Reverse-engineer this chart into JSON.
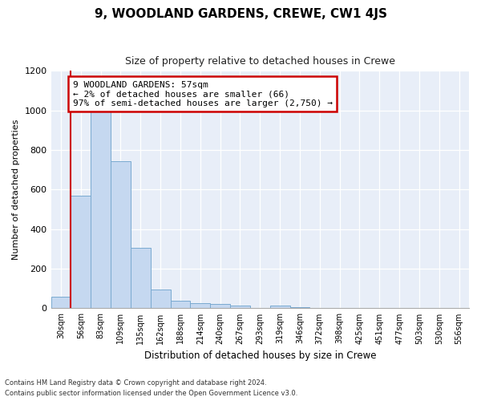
{
  "title": "9, WOODLAND GARDENS, CREWE, CW1 4JS",
  "subtitle": "Size of property relative to detached houses in Crewe",
  "xlabel": "Distribution of detached houses by size in Crewe",
  "ylabel": "Number of detached properties",
  "bar_color": "#c5d8f0",
  "bar_edge_color": "#7aaad0",
  "bg_color": "#e8eef8",
  "categories": [
    "30sqm",
    "56sqm",
    "83sqm",
    "109sqm",
    "135sqm",
    "162sqm",
    "188sqm",
    "214sqm",
    "240sqm",
    "267sqm",
    "293sqm",
    "319sqm",
    "346sqm",
    "372sqm",
    "398sqm",
    "425sqm",
    "451sqm",
    "477sqm",
    "503sqm",
    "530sqm",
    "556sqm"
  ],
  "values": [
    60,
    570,
    1000,
    745,
    305,
    95,
    40,
    25,
    20,
    12,
    0,
    12,
    5,
    3,
    2,
    2,
    1,
    1,
    1,
    1,
    1
  ],
  "ylim": [
    0,
    1200
  ],
  "yticks": [
    0,
    200,
    400,
    600,
    800,
    1000,
    1200
  ],
  "annotation_text": "9 WOODLAND GARDENS: 57sqm\n← 2% of detached houses are smaller (66)\n97% of semi-detached houses are larger (2,750) →",
  "vline_pos": 1.0,
  "annotation_box_color": "#ffffff",
  "annotation_box_edge": "#cc0000",
  "vline_color": "#cc0000",
  "footer_line1": "Contains HM Land Registry data © Crown copyright and database right 2024.",
  "footer_line2": "Contains public sector information licensed under the Open Government Licence v3.0."
}
